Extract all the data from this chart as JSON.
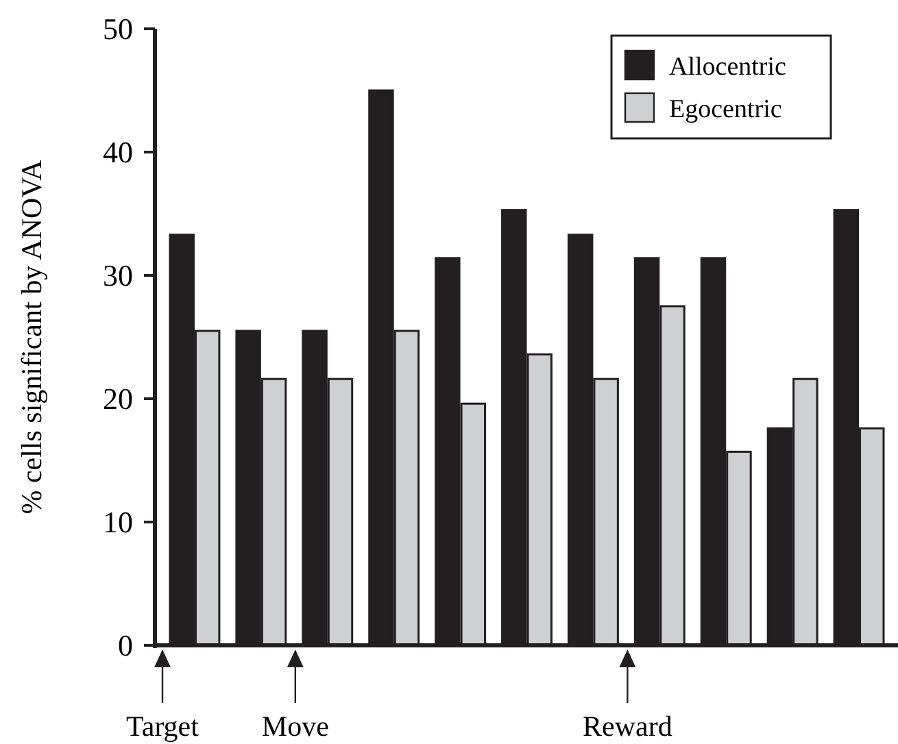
{
  "chart_data": {
    "type": "bar",
    "ylabel": "% cells significant by ANOVA",
    "categories": [
      null,
      null,
      null,
      null,
      null,
      null,
      null,
      null,
      null,
      null,
      null
    ],
    "series": [
      {
        "name": "Allocentric",
        "color": "#231f20",
        "values": [
          33.3,
          25.5,
          25.5,
          45,
          31.4,
          35.3,
          33.3,
          31.4,
          31.4,
          17.6,
          35.3
        ]
      },
      {
        "name": "Egocentric",
        "color": "#cfd0d2",
        "values": [
          25.5,
          21.6,
          21.6,
          25.5,
          19.6,
          23.6,
          21.6,
          27.5,
          15.7,
          21.6,
          17.6
        ]
      }
    ],
    "ylim": [
      0,
      50
    ],
    "yticks": [
      0,
      10,
      20,
      30,
      40,
      50
    ],
    "legend": "top right",
    "annotations": [
      "Target",
      "Move",
      "Reward"
    ]
  }
}
